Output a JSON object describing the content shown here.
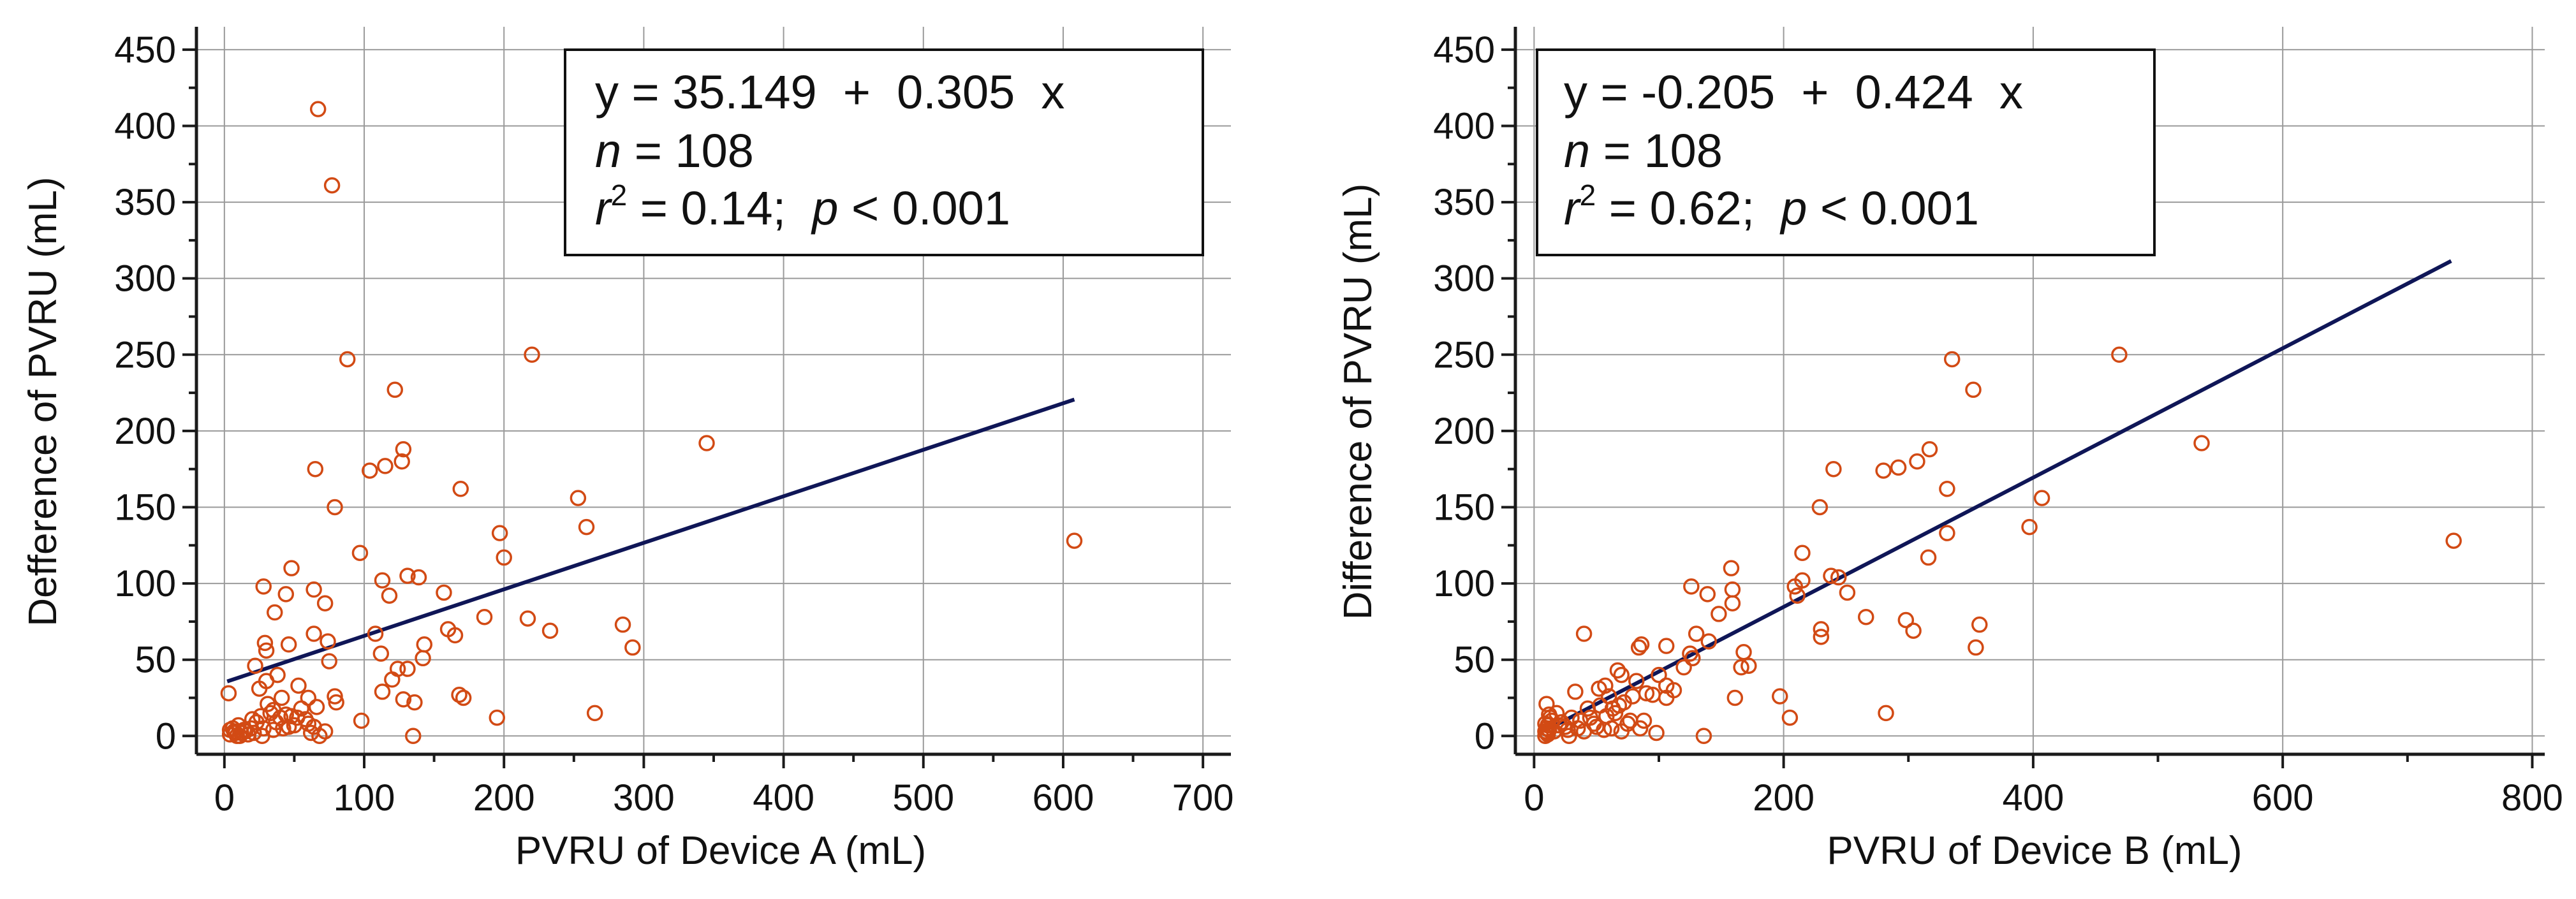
{
  "chart_data": [
    {
      "type": "scatter",
      "xlabel": "PVRU of Device A (mL)",
      "ylabel": "Defference of PVRU (mL)",
      "xlim": [
        -20,
        720
      ],
      "ylim": [
        -12,
        465
      ],
      "xticks": [
        "0",
        "100",
        "200",
        "300",
        "400",
        "500",
        "600",
        "700"
      ],
      "yticks": [
        "0",
        "50",
        "100",
        "150",
        "200",
        "250",
        "300",
        "350",
        "400",
        "450"
      ],
      "fit": {
        "intercept": 35.149,
        "slope": 0.305,
        "x_range": [
          2,
          608
        ]
      },
      "annotation": {
        "equation": "y = 35.149  +  0.305  x",
        "n_label": "n",
        "n_value": "= 108",
        "r_label": "r",
        "r_sup": "2",
        "r_value": " = 0.14;  ",
        "p_label": "p",
        "p_value": " < 0.001"
      },
      "points": [
        [
          67,
          411
        ],
        [
          77,
          361
        ],
        [
          88,
          247
        ],
        [
          220,
          250
        ],
        [
          122,
          227
        ],
        [
          128,
          188
        ],
        [
          345,
          192
        ],
        [
          127,
          180
        ],
        [
          115,
          177
        ],
        [
          104,
          174
        ],
        [
          65,
          175
        ],
        [
          169,
          162
        ],
        [
          253,
          156
        ],
        [
          79,
          150
        ],
        [
          259,
          137
        ],
        [
          197,
          133
        ],
        [
          608,
          128
        ],
        [
          200,
          117
        ],
        [
          97,
          120
        ],
        [
          48,
          110
        ],
        [
          131,
          105
        ],
        [
          139,
          104
        ],
        [
          113,
          102
        ],
        [
          28,
          98
        ],
        [
          64,
          96
        ],
        [
          118,
          92
        ],
        [
          157,
          94
        ],
        [
          44,
          93
        ],
        [
          72,
          87
        ],
        [
          36,
          81
        ],
        [
          217,
          77
        ],
        [
          285,
          73
        ],
        [
          186,
          78
        ],
        [
          233,
          69
        ],
        [
          108,
          67
        ],
        [
          160,
          70
        ],
        [
          165,
          66
        ],
        [
          64,
          67
        ],
        [
          29,
          61
        ],
        [
          46,
          60
        ],
        [
          74,
          62
        ],
        [
          30,
          56
        ],
        [
          143,
          60
        ],
        [
          112,
          54
        ],
        [
          292,
          58
        ],
        [
          22,
          46
        ],
        [
          124,
          44
        ],
        [
          75,
          49
        ],
        [
          131,
          44
        ],
        [
          142,
          51
        ],
        [
          38,
          40
        ],
        [
          53,
          33
        ],
        [
          79,
          26
        ],
        [
          113,
          29
        ],
        [
          30,
          36
        ],
        [
          25,
          31
        ],
        [
          60,
          25
        ],
        [
          168,
          27
        ],
        [
          171,
          25
        ],
        [
          128,
          24
        ],
        [
          136,
          22
        ],
        [
          3,
          28
        ],
        [
          66,
          19
        ],
        [
          35,
          17
        ],
        [
          31,
          21
        ],
        [
          20,
          11
        ],
        [
          40,
          12
        ],
        [
          44,
          14
        ],
        [
          48,
          13
        ],
        [
          19,
          5
        ],
        [
          23,
          9
        ],
        [
          10,
          7
        ],
        [
          14,
          4
        ],
        [
          28,
          5
        ],
        [
          4,
          4
        ],
        [
          7,
          3
        ],
        [
          4,
          1
        ],
        [
          12,
          2
        ],
        [
          17,
          1
        ],
        [
          42,
          5
        ],
        [
          50,
          7
        ],
        [
          60,
          8
        ],
        [
          64,
          6
        ],
        [
          72,
          3
        ],
        [
          62,
          2
        ],
        [
          98,
          10
        ],
        [
          195,
          12
        ],
        [
          265,
          15
        ],
        [
          135,
          0
        ],
        [
          11,
          0
        ],
        [
          8,
          2
        ],
        [
          6,
          5
        ],
        [
          26,
          13
        ],
        [
          33,
          15
        ],
        [
          55,
          18
        ],
        [
          58,
          11
        ],
        [
          37,
          9
        ],
        [
          46,
          6
        ],
        [
          15,
          3
        ],
        [
          9,
          0
        ],
        [
          21,
          2
        ],
        [
          27,
          0
        ],
        [
          35,
          4
        ],
        [
          52,
          12
        ],
        [
          41,
          25
        ],
        [
          68,
          0
        ],
        [
          80,
          22
        ],
        [
          120,
          37
        ]
      ]
    },
    {
      "type": "scatter",
      "xlabel": "PVRU of Device B (mL)",
      "ylabel": "Difference of PVRU (mL)",
      "xlim": [
        -15,
        810
      ],
      "ylim": [
        -12,
        465
      ],
      "xticks": [
        "0",
        "200",
        "400",
        "600",
        "800"
      ],
      "yticks": [
        "0",
        "50",
        "100",
        "150",
        "200",
        "250",
        "300",
        "350",
        "400",
        "450"
      ],
      "fit": {
        "intercept": -0.205,
        "slope": 0.424,
        "x_range": [
          10,
          735
        ]
      },
      "annotation": {
        "equation": "y = -0.205  +  0.424  x",
        "n_label": "n",
        "n_value": "= 108",
        "r_label": "r",
        "r_sup": "2",
        "r_value": " = 0.62;  ",
        "p_label": "p",
        "p_value": " < 0.001"
      },
      "points": [
        [
          469,
          250
        ],
        [
          335,
          247
        ],
        [
          352,
          227
        ],
        [
          535,
          192
        ],
        [
          317,
          188
        ],
        [
          240,
          175
        ],
        [
          307,
          180
        ],
        [
          292,
          176
        ],
        [
          280,
          174
        ],
        [
          331,
          162
        ],
        [
          407,
          156
        ],
        [
          229,
          150
        ],
        [
          397,
          137
        ],
        [
          331,
          133
        ],
        [
          737,
          128
        ],
        [
          215,
          120
        ],
        [
          316,
          117
        ],
        [
          158,
          110
        ],
        [
          238,
          105
        ],
        [
          244,
          104
        ],
        [
          215,
          102
        ],
        [
          126,
          98
        ],
        [
          159,
          96
        ],
        [
          209,
          98
        ],
        [
          139,
          93
        ],
        [
          251,
          94
        ],
        [
          159,
          87
        ],
        [
          211,
          92
        ],
        [
          148,
          80
        ],
        [
          298,
          76
        ],
        [
          266,
          78
        ],
        [
          357,
          73
        ],
        [
          230,
          65
        ],
        [
          304,
          69
        ],
        [
          40,
          67
        ],
        [
          230,
          70
        ],
        [
          106,
          59
        ],
        [
          127,
          51
        ],
        [
          84,
          58
        ],
        [
          354,
          58
        ],
        [
          86,
          60
        ],
        [
          168,
          55
        ],
        [
          130,
          67
        ],
        [
          166,
          45
        ],
        [
          172,
          46
        ],
        [
          67,
          43
        ],
        [
          106,
          33
        ],
        [
          197,
          26
        ],
        [
          106,
          25
        ],
        [
          161,
          25
        ],
        [
          52,
          31
        ],
        [
          70,
          40
        ],
        [
          95,
          27
        ],
        [
          79,
          26
        ],
        [
          60,
          26
        ],
        [
          33,
          29
        ],
        [
          282,
          15
        ],
        [
          205,
          12
        ],
        [
          136,
          0
        ],
        [
          88,
          10
        ],
        [
          58,
          13
        ],
        [
          43,
          18
        ],
        [
          10,
          21
        ],
        [
          12,
          14
        ],
        [
          9,
          8
        ],
        [
          12,
          4
        ],
        [
          10,
          2
        ],
        [
          9,
          0
        ],
        [
          14,
          10
        ],
        [
          25,
          6
        ],
        [
          30,
          12
        ],
        [
          45,
          12
        ],
        [
          50,
          6
        ],
        [
          56,
          4
        ],
        [
          62,
          5
        ],
        [
          70,
          3
        ],
        [
          75,
          8
        ],
        [
          11,
          1
        ],
        [
          10,
          5
        ],
        [
          16,
          3
        ],
        [
          20,
          7
        ],
        [
          35,
          5
        ],
        [
          40,
          3
        ],
        [
          48,
          8
        ],
        [
          63,
          18
        ],
        [
          68,
          20
        ],
        [
          82,
          36
        ],
        [
          90,
          28
        ],
        [
          100,
          40
        ],
        [
          120,
          45
        ],
        [
          28,
          0
        ],
        [
          9,
          3
        ],
        [
          11,
          7
        ],
        [
          13,
          12
        ],
        [
          18,
          15
        ],
        [
          22,
          9
        ],
        [
          27,
          4
        ],
        [
          37,
          10
        ],
        [
          53,
          20
        ],
        [
          57,
          33
        ],
        [
          65,
          15
        ],
        [
          72,
          22
        ],
        [
          77,
          10
        ],
        [
          85,
          5
        ],
        [
          98,
          2
        ],
        [
          112,
          30
        ],
        [
          125,
          54
        ],
        [
          140,
          62
        ]
      ]
    }
  ]
}
